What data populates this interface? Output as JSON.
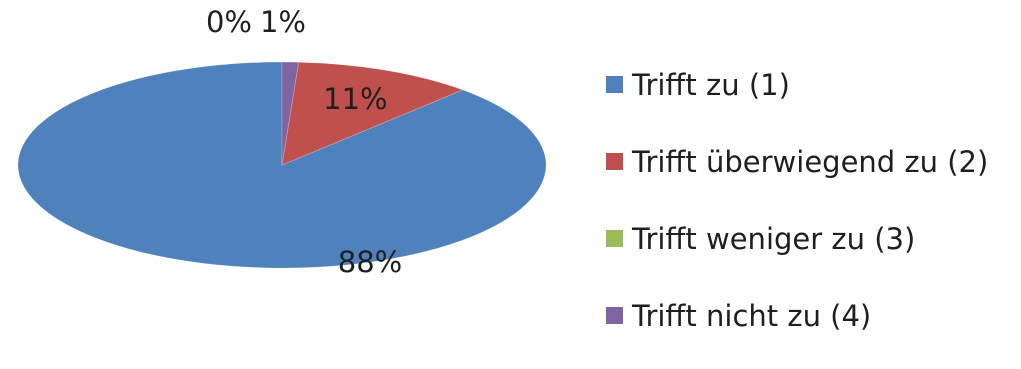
{
  "chart_data": {
    "type": "pie",
    "style": "3d",
    "title": "",
    "categories": [
      "Trifft zu (1)",
      "Trifft überwiegend zu (2)",
      "Trifft weniger zu (3)",
      "Trifft nicht zu (4)"
    ],
    "values": [
      88,
      11,
      0,
      1
    ],
    "value_labels": [
      "88%",
      "11%",
      "0%",
      "1%"
    ],
    "colors": [
      "#4F81BD",
      "#C0504D",
      "#9BBB59",
      "#8064A2"
    ],
    "legend_position": "right"
  }
}
